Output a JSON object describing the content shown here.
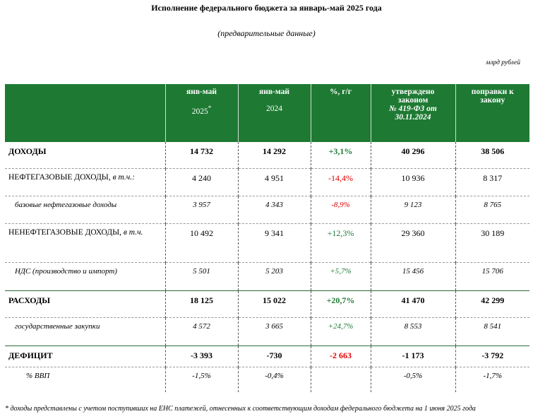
{
  "title": "Исполнение федерального бюджета за январь-май 2025 года",
  "subtitle": "(предварительные данные)",
  "units": "млрд рублей",
  "header": {
    "col1_line1": "янв-май",
    "col1_line2": "2025",
    "col1_mark": "*",
    "col2_line1": "янв-май",
    "col2_line2": "2024",
    "col3": "%, г/г",
    "col4_line1": "утверждено",
    "col4_line2": "законом",
    "col4_line3": "№ 419-ФЗ от",
    "col4_line4": "30.11.2024",
    "col5": "поправки к закону"
  },
  "rows": [
    {
      "label": "ДОХОДЫ",
      "label_suffix": "",
      "v2025": "14 732",
      "v2024": "14 292",
      "yoy": "+3,1%",
      "law": "40 296",
      "amend": "38 506"
    },
    {
      "label": "НЕФТЕГАЗОВЫЕ ДОХОДЫ, ",
      "label_suffix": "в т.ч.:",
      "v2025": "4 240",
      "v2024": "4 951",
      "yoy": "-14,4%",
      "law": "10 936",
      "amend": "8 317"
    },
    {
      "label": "базовые нефтегазовые доходы",
      "label_suffix": "",
      "v2025": "3 957",
      "v2024": "4 343",
      "yoy": "-8,9%",
      "law": "9 123",
      "amend": "8 765"
    },
    {
      "label": "НЕНЕФТЕГАЗОВЫЕ ДОХОДЫ, ",
      "label_suffix": "в т.ч.",
      "v2025": "10 492",
      "v2024": "9 341",
      "yoy": "+12,3%",
      "law": "29 360",
      "amend": "30 189"
    },
    {
      "label": "НДС (производство и импорт)",
      "label_suffix": "",
      "v2025": "5 501",
      "v2024": "5 203",
      "yoy": "+5,7%",
      "law": "15 456",
      "amend": "15 706"
    },
    {
      "label": "РАСХОДЫ",
      "label_suffix": "",
      "v2025": "18 125",
      "v2024": "15 022",
      "yoy": "+20,7%",
      "law": "41 470",
      "amend": "42 299"
    },
    {
      "label": "государственные закупки",
      "label_suffix": "",
      "v2025": "4 572",
      "v2024": "3 665",
      "yoy": "+24,7%",
      "law": "8 553",
      "amend": "8 541"
    },
    {
      "label": "ДЕФИЦИТ",
      "label_suffix": "",
      "v2025": "-3 393",
      "v2024": "-730",
      "yoy": "-2 663",
      "law": "-1 173",
      "amend": "-3 792"
    },
    {
      "label": "% ВВП",
      "label_suffix": "",
      "v2025": "-1,5%",
      "v2024": "-0,4%",
      "yoy": "",
      "law": "-0,5%",
      "amend": "-1,7%"
    }
  ],
  "colors": {
    "header_bg": "#1e7a33",
    "negative": "#e00000",
    "positive": "#1e7a33"
  },
  "footnote": "* доходы представлены с учетом поступивших на ЕНС платежей, отнесенных к соответствующим доходам федерального бюджета на 1 июня 2025 года"
}
